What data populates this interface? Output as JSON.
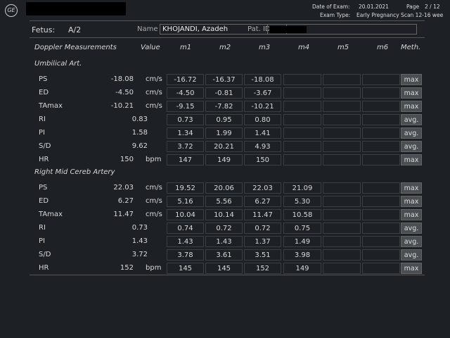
{
  "header": {
    "logo": "GE",
    "date_label": "Date of Exam:",
    "date": "20.01.2021",
    "page_label": "Page",
    "page": "2 / 12",
    "exam_type_label": "Exam Type:",
    "exam_type": "Early Pregnancy Scan 12-16 wee"
  },
  "patient": {
    "fetus_label": "Fetus:",
    "fetus": "A/2",
    "name_label": "Name",
    "name": "KHOJANDI, Azadeh",
    "patid_label": "Pat. ID"
  },
  "columns": {
    "title": "Doppler Measurements",
    "value": "Value",
    "m1": "m1",
    "m2": "m2",
    "m3": "m3",
    "m4": "m4",
    "m5": "m5",
    "m6": "m6",
    "meth": "Meth."
  },
  "sections": [
    {
      "title": "Umbilical Art.",
      "rows": [
        {
          "label": "PS",
          "value": "-18.08",
          "unit": "cm/s",
          "m": [
            "-16.72",
            "-16.37",
            "-18.08",
            "",
            "",
            ""
          ],
          "meth": "max"
        },
        {
          "label": "ED",
          "value": "-4.50",
          "unit": "cm/s",
          "m": [
            "-4.50",
            "-0.81",
            "-3.67",
            "",
            "",
            ""
          ],
          "meth": "max"
        },
        {
          "label": "TAmax",
          "value": "-10.21",
          "unit": "cm/s",
          "m": [
            "-9.15",
            "-7.82",
            "-10.21",
            "",
            "",
            ""
          ],
          "meth": "max"
        },
        {
          "label": "RI",
          "value": "0.83",
          "unit": "",
          "m": [
            "0.73",
            "0.95",
            "0.80",
            "",
            "",
            ""
          ],
          "meth": "avg."
        },
        {
          "label": "PI",
          "value": "1.58",
          "unit": "",
          "m": [
            "1.34",
            "1.99",
            "1.41",
            "",
            "",
            ""
          ],
          "meth": "avg."
        },
        {
          "label": "S/D",
          "value": "9.62",
          "unit": "",
          "m": [
            "3.72",
            "20.21",
            "4.93",
            "",
            "",
            ""
          ],
          "meth": "avg."
        },
        {
          "label": "HR",
          "value": "150",
          "unit": "bpm",
          "m": [
            "147",
            "149",
            "150",
            "",
            "",
            ""
          ],
          "meth": "max"
        }
      ]
    },
    {
      "title": "Right Mid Cereb Artery",
      "rows": [
        {
          "label": "PS",
          "value": "22.03",
          "unit": "cm/s",
          "m": [
            "19.52",
            "20.06",
            "22.03",
            "21.09",
            "",
            ""
          ],
          "meth": "max"
        },
        {
          "label": "ED",
          "value": "6.27",
          "unit": "cm/s",
          "m": [
            "5.16",
            "5.56",
            "6.27",
            "5.30",
            "",
            ""
          ],
          "meth": "max"
        },
        {
          "label": "TAmax",
          "value": "11.47",
          "unit": "cm/s",
          "m": [
            "10.04",
            "10.14",
            "11.47",
            "10.58",
            "",
            ""
          ],
          "meth": "max"
        },
        {
          "label": "RI",
          "value": "0.73",
          "unit": "",
          "m": [
            "0.74",
            "0.72",
            "0.72",
            "0.75",
            "",
            ""
          ],
          "meth": "avg."
        },
        {
          "label": "PI",
          "value": "1.43",
          "unit": "",
          "m": [
            "1.43",
            "1.43",
            "1.37",
            "1.49",
            "",
            ""
          ],
          "meth": "avg."
        },
        {
          "label": "S/D",
          "value": "3.72",
          "unit": "",
          "m": [
            "3.78",
            "3.61",
            "3.51",
            "3.98",
            "",
            ""
          ],
          "meth": "avg."
        },
        {
          "label": "HR",
          "value": "152",
          "unit": "bpm",
          "m": [
            "145",
            "145",
            "152",
            "149",
            "",
            ""
          ],
          "meth": "max"
        }
      ]
    }
  ]
}
